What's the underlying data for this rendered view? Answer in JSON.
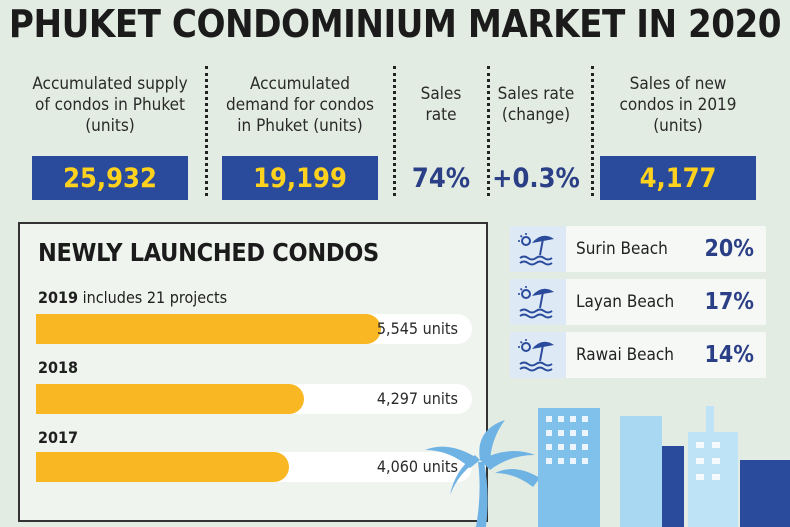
{
  "title": "PHUKET CONDOMINIUM MARKET IN 2020",
  "stats": [
    {
      "label": "Accumulated supply of condos in Phuket (units)",
      "value": "25,932"
    },
    {
      "label": "Accumulated demand for condos in Phuket (units)",
      "value": "19,199"
    },
    {
      "label": "Sales rate",
      "value": "74%"
    },
    {
      "label": "Sales rate (change)",
      "value": "+0.3%"
    },
    {
      "label": "Sales of new condos in 2019 (units)",
      "value": "4,177"
    }
  ],
  "newly_launched": {
    "title": "NEWLY LAUNCHED CONDOS",
    "rows": [
      {
        "year": "2019",
        "note": " includes 21 projects",
        "value_label": "5,545 units"
      },
      {
        "year": "2018",
        "note": "",
        "value_label": "4,297 units"
      },
      {
        "year": "2017",
        "note": "",
        "value_label": "4,060 units"
      }
    ]
  },
  "beaches": [
    {
      "name": "Surin Beach",
      "share": "20%",
      "icon": "beach-umbrella-icon"
    },
    {
      "name": "Layan Beach",
      "share": "17%",
      "icon": "beach-umbrella-icon"
    },
    {
      "name": "Rawai Beach",
      "share": "14%",
      "icon": "beach-umbrella-icon"
    }
  ],
  "colors": {
    "blue": "#2a4a9c",
    "yellow": "#ffd21e",
    "bar": "#f9b823",
    "navy": "#2a3f86"
  },
  "chart_data": {
    "type": "bar",
    "title": "NEWLY LAUNCHED CONDOS",
    "categories": [
      "2019",
      "2018",
      "2017"
    ],
    "values": [
      5545,
      4297,
      4060
    ],
    "unit": "units",
    "xlim": [
      0,
      7000
    ]
  }
}
